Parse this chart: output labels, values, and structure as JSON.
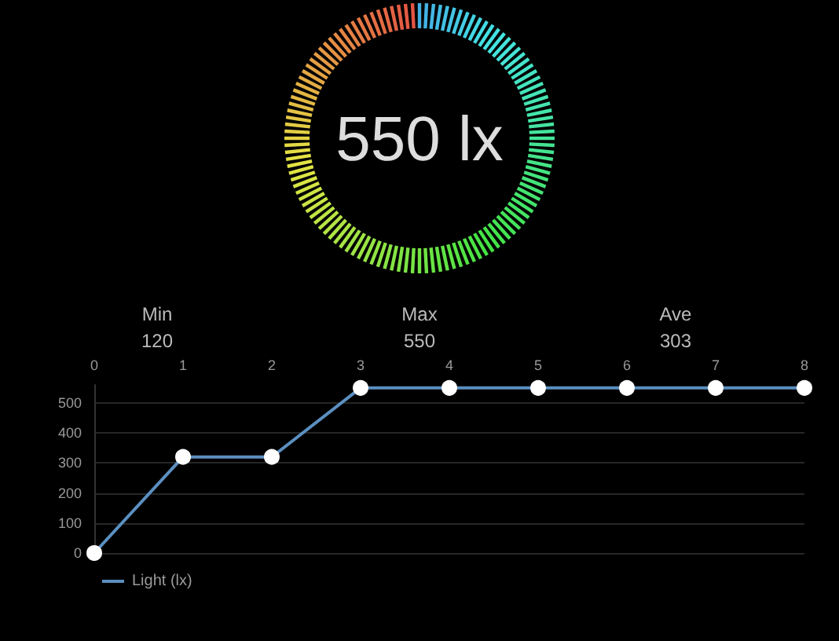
{
  "chart_data": [
    {
      "type": "other",
      "title": "550 lx",
      "annotations": [
        "Min",
        "120",
        "Max",
        "550",
        "Ave",
        "303"
      ]
    },
    {
      "type": "line",
      "x": [
        0,
        1,
        2,
        3,
        4,
        5,
        6,
        7,
        8
      ],
      "xlim": [
        0,
        8
      ],
      "xticks": [
        0,
        1,
        2,
        3,
        4,
        5,
        6,
        7,
        8
      ],
      "ylim": [
        0,
        560
      ],
      "yticks": [
        0,
        100,
        200,
        300,
        400,
        500
      ],
      "series": [
        {
          "name": "Light (lx)",
          "color": "#5b8fc0",
          "values": [
            0,
            320,
            320,
            550,
            550,
            550,
            550,
            550,
            550
          ]
        }
      ],
      "grid": "y",
      "legend": "bottom left",
      "marker": "circle",
      "line_style": "solid"
    }
  ]
}
